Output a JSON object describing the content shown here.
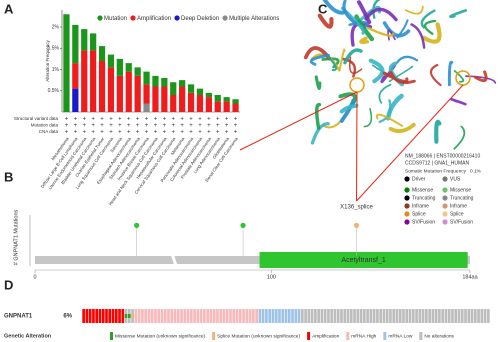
{
  "panels": {
    "a": "A",
    "b": "B",
    "c": "C",
    "d": "D"
  },
  "chart_data": [
    {
      "type": "bar",
      "y_label": "Alteration Frequency",
      "categories": [
        "Mesothelioma",
        "Diffuse Large B-Cell Lymphoma",
        "Uterine Endometrioid Carcinoma",
        "Bladder Urothelial Carcinoma",
        "Ovarian Epithelial Tumor",
        "Lung Squamous Cell Carcinoma",
        "Sarcoma",
        "Esophageal Adenocarcinoma",
        "Stomach Adenocarcinoma",
        "Invasive Breast Carcinoma",
        "Head and Neck Squamous Cell Carcinoma",
        "Hepatocellular Carcinoma",
        "Cervical Squamous Cell Carcinoma",
        "Melanoma",
        "Pancreatic Adenocarcinoma",
        "Colorectal Adenocarcinoma",
        "Prostate Adenocarcinoma",
        "Lung Adenocarcinoma",
        "Glioblastoma",
        "Renal Clear Cell Carcinoma"
      ],
      "series": [
        {
          "name": "Mutation",
          "color": "#1a961a",
          "values": [
            2.3,
            0.9,
            0.5,
            0.4,
            0.35,
            0.3,
            0.4,
            0.2,
            0.2,
            0.3,
            0.25,
            0.2,
            0.3,
            0.15,
            0.2,
            0.15,
            0.1,
            0.15,
            0.1,
            0.1
          ]
        },
        {
          "name": "Amplification",
          "color": "#ee1c1c",
          "values": [
            0,
            0.6,
            1.45,
            1.45,
            1.2,
            1.05,
            0.85,
            0.95,
            0.85,
            0.45,
            0.6,
            0.6,
            0.4,
            0.6,
            0.45,
            0.4,
            0.35,
            0.25,
            0.25,
            0.2
          ]
        },
        {
          "name": "Deep Deletion",
          "color": "#1a1acc",
          "values": [
            0,
            0.55,
            0,
            0,
            0,
            0,
            0,
            0,
            0,
            0,
            0,
            0,
            0,
            0,
            0,
            0,
            0,
            0,
            0,
            0
          ]
        },
        {
          "name": "Multiple Alterations",
          "color": "#8a8a8a",
          "values": [
            0,
            0,
            0,
            0,
            0,
            0,
            0,
            0,
            0,
            0.2,
            0,
            0,
            0,
            0,
            0,
            0,
            0,
            0,
            0,
            0
          ]
        }
      ],
      "ylim": [
        0,
        2.4
      ],
      "yticks": [
        {
          "value": 0.5,
          "label": "0.5%"
        },
        {
          "value": 1,
          "label": "1%"
        },
        {
          "value": 1.5,
          "label": "1.5%"
        },
        {
          "value": 2,
          "label": "2%"
        }
      ],
      "row_labels": [
        "Structural variant data",
        "Mutation data",
        "CNA data"
      ],
      "row_mark": "+"
    },
    {
      "type": "lollipop",
      "y_label": "# GNPNAT1 Mutations",
      "xlim": [
        0,
        184
      ],
      "ylim": [
        0,
        1.3
      ],
      "xticks": [
        0,
        100,
        {
          "value": 184,
          "label": "184aa"
        }
      ],
      "domains": [
        {
          "name": "Acetyltransf_1",
          "start": 95,
          "end": 183,
          "color": "#2ec52e"
        }
      ],
      "x": [
        43,
        88,
        136
      ],
      "values": [
        1,
        1,
        1
      ],
      "point_colors": [
        "#2ec52e",
        "#2ec52e",
        "#f2b27a"
      ],
      "annotations": [
        {
          "text": "X136_splice",
          "x": 136
        }
      ]
    }
  ],
  "structure": {
    "ids": [
      "NM_188066 | ENST00000216410",
      "CCDS9712 | GNA1_HUMAN"
    ],
    "freq_label": "Somatic Mutation Frequency",
    "freq_value": "0.1%",
    "legend": [
      [
        "Driver",
        "#000000"
      ],
      [
        "VUS",
        "#777777"
      ],
      [
        "Missense",
        "#008000"
      ],
      [
        "Missense",
        "#6cc36c"
      ],
      [
        "Truncating",
        "#000000"
      ],
      [
        "Truncating",
        "#888888"
      ],
      [
        "Inframe",
        "#8b3a1a"
      ],
      [
        "Inframe",
        "#d7956b"
      ],
      [
        "Splice",
        "#e6861f"
      ],
      [
        "Splice",
        "#f3c48e"
      ],
      [
        "SV/Fusion",
        "#8b008b"
      ],
      [
        "SV/Fusion",
        "#d58ad5"
      ]
    ]
  },
  "oncoprint": {
    "gene": "GNPNAT1",
    "percent": "6%",
    "title": "Genetic Alteration",
    "legend": [
      {
        "label": "Missense Mutation (unknown significance)",
        "color": "#2ca02c",
        "count": 2
      },
      {
        "label": "Splice Mutation (unknown significance)",
        "color": "#f0b27a",
        "count": 1
      },
      {
        "label": "Amplification",
        "color": "#ff0000",
        "count": 13
      },
      {
        "label": "mRNA High",
        "color": "#f7b9b9",
        "count": 38
      },
      {
        "label": "mRNA Low",
        "color": "#9fc3e7",
        "count": 13
      },
      {
        "label": "No alterations",
        "color": "#bdbdbd",
        "count": 58
      }
    ]
  }
}
